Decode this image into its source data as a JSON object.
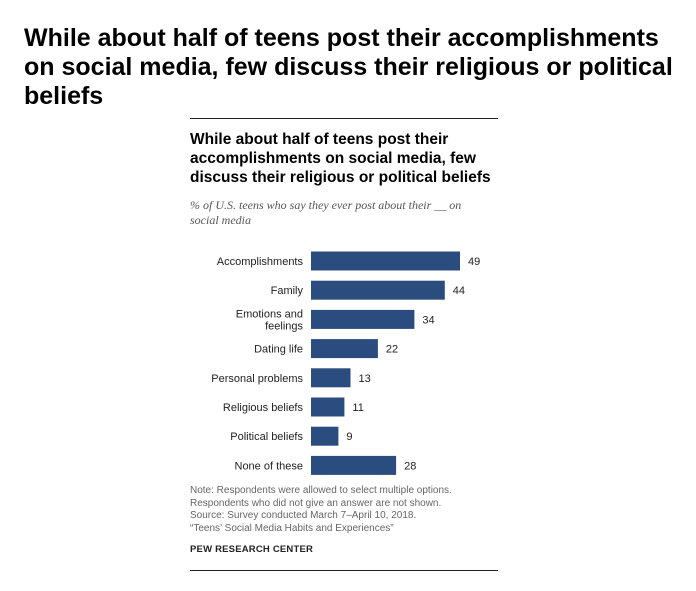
{
  "headline": "While about half of teens post their accomplishments on social media, few discuss their religious or political beliefs",
  "card": {
    "title": "While about half of teens post their accomplishments on social media, few discuss their religious or political beliefs",
    "subtitle": "% of U.S. teens who say they ever post about their __ on social media",
    "notes": {
      "note": "Note: Respondents were allowed to select multiple options. Respondents who did not give an answer are not shown.",
      "source": "Source: Survey conducted March 7–April 10, 2018.",
      "report": "“Teens’ Social Media Habits and Experiences”",
      "brand": "PEW RESEARCH CENTER"
    }
  },
  "colors": {
    "bar": "#2b4c7e"
  },
  "chart_data": {
    "type": "bar",
    "orientation": "horizontal",
    "title": "While about half of teens post their accomplishments on social media, few discuss their religious or political beliefs",
    "subtitle": "% of U.S. teens who say they ever post about their __ on social media",
    "categories": [
      [
        "Accomplishments"
      ],
      [
        "Family"
      ],
      [
        "Emotions and",
        "feelings"
      ],
      [
        "Dating life"
      ],
      [
        "Personal problems"
      ],
      [
        "Religious beliefs"
      ],
      [
        "Political beliefs"
      ],
      [
        "None of these"
      ]
    ],
    "values": [
      49,
      44,
      34,
      22,
      13,
      11,
      9,
      28
    ],
    "xlim": [
      0,
      50
    ],
    "xlabel": "",
    "ylabel": "",
    "grid": false,
    "legend": "none"
  }
}
